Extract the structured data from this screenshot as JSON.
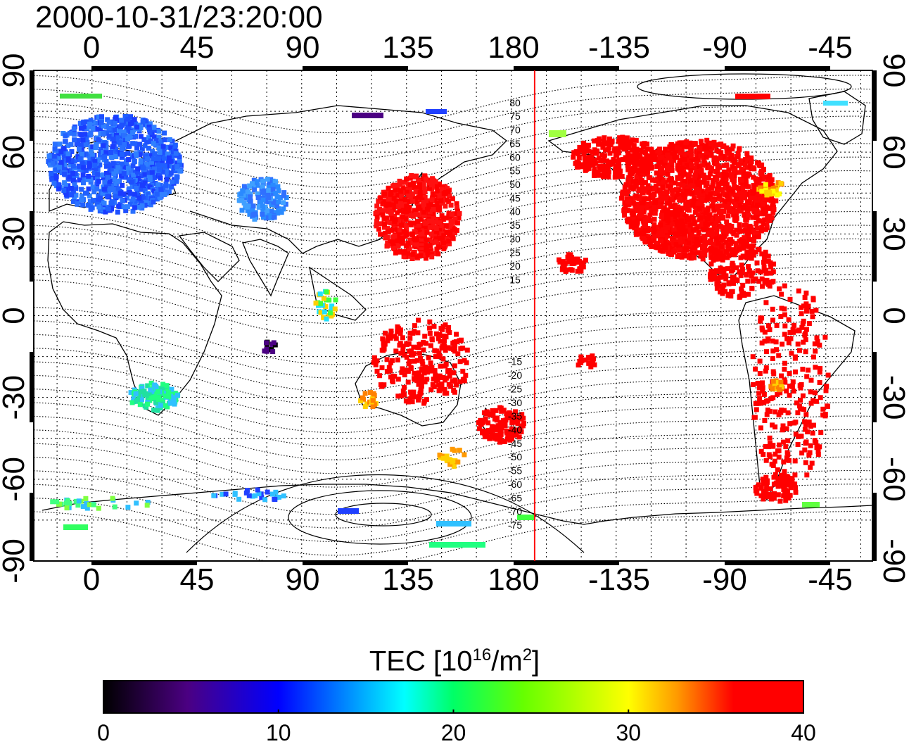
{
  "timestamp": "2000-10-31/23:20:00",
  "x_ticks": [
    "0",
    "45",
    "90",
    "135",
    "180",
    "-135",
    "-90",
    "-45"
  ],
  "y_ticks": [
    "90",
    "60",
    "30",
    "0",
    "-30",
    "-60",
    "-90"
  ],
  "contour_labels": [
    "80",
    "75",
    "70",
    "65",
    "60",
    "55",
    "50",
    "45",
    "40",
    "35",
    "30",
    "25",
    "20",
    "15",
    "-15",
    "-20",
    "-25",
    "-30",
    "-35",
    "-40",
    "-45",
    "-50",
    "-55",
    "-60",
    "-65",
    "-70",
    "-75"
  ],
  "colorbar": {
    "title_prefix": "TEC  [10",
    "title_exp": "16",
    "title_mid": "/m",
    "title_exp2": "2",
    "title_suffix": "]",
    "ticks": [
      "0",
      "10",
      "20",
      "30",
      "40"
    ],
    "range": [
      0,
      40
    ],
    "colors": [
      "#000000",
      "#4b0082",
      "#0000ff",
      "#00ffff",
      "#00ff00",
      "#ffff00",
      "#ff8000",
      "#ff0000",
      "#ff0000"
    ]
  },
  "map": {
    "lon_range": [
      -25,
      335
    ],
    "lat_range": [
      -90,
      90
    ],
    "terminator_line_lon": 190,
    "terminator_color": "#ff0000"
  }
}
